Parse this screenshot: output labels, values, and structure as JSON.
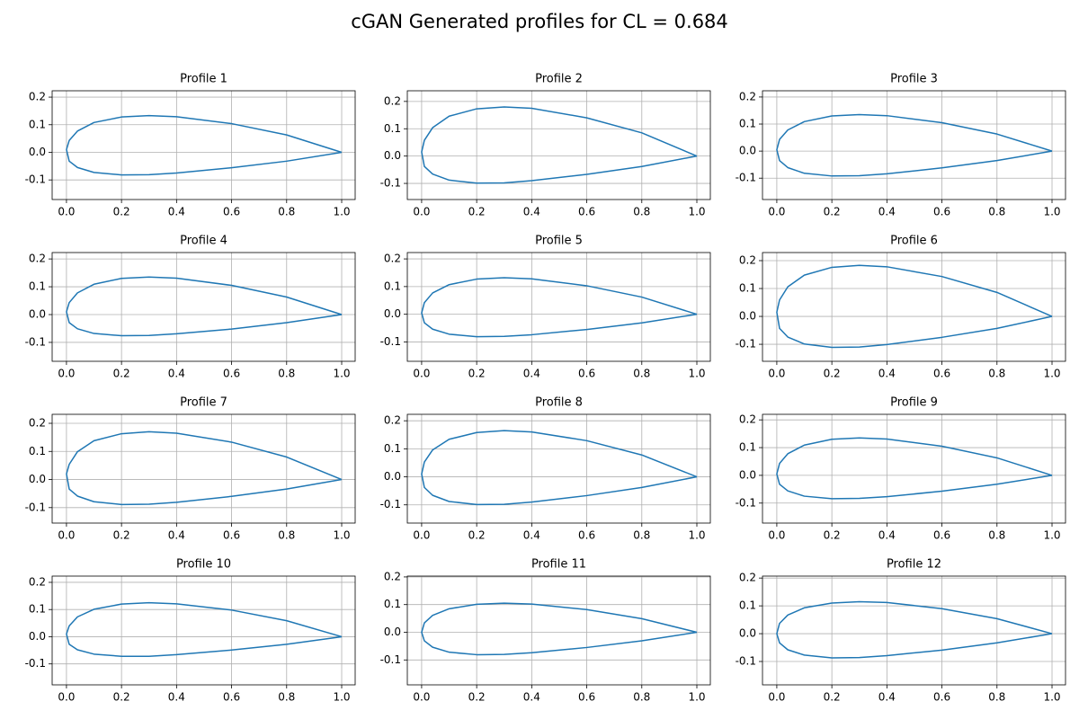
{
  "title": "cGAN Generated profiles for CL = 0.684",
  "chart_data": [
    {
      "type": "line",
      "title": "Profile 1",
      "color": "#1f77b4",
      "grid": true,
      "xlim": [
        -0.052,
        1.049
      ],
      "ylim": [
        -0.171,
        0.223
      ],
      "xticks": [
        {
          "value": 0,
          "label": "0.0"
        },
        0.2,
        0.4,
        0.6,
        0.8,
        {
          "value": 1,
          "label": "1.0"
        }
      ],
      "yticks": [
        -0.1,
        {
          "value": 0,
          "label": "0.0"
        },
        0.1,
        0.2
      ],
      "x": [
        1,
        0.8,
        0.6,
        0.4,
        0.3,
        0.2,
        0.1,
        0.04,
        0.01,
        0,
        0.01,
        0.04,
        0.1,
        0.2,
        0.3,
        0.4,
        0.6,
        0.8,
        1
      ],
      "values": [
        0,
        0.063,
        0.104,
        0.129,
        0.133,
        0.128,
        0.108,
        0.077,
        0.043,
        0.01,
        -0.032,
        -0.055,
        -0.073,
        -0.082,
        -0.081,
        -0.075,
        -0.056,
        -0.032,
        0
      ]
    },
    {
      "type": "line",
      "title": "Profile 2",
      "color": "#1f77b4",
      "grid": true,
      "xlim": [
        -0.052,
        1.049
      ],
      "ylim": [
        -0.159,
        0.239
      ],
      "xticks": [
        {
          "value": 0,
          "label": "0.0"
        },
        0.2,
        0.4,
        0.6,
        0.8,
        {
          "value": 1,
          "label": "1.0"
        }
      ],
      "yticks": [
        -0.1,
        {
          "value": 0,
          "label": "0.0"
        },
        0.1,
        0.2
      ],
      "x": [
        1,
        0.8,
        0.6,
        0.4,
        0.3,
        0.2,
        0.1,
        0.04,
        0.01,
        0,
        0.01,
        0.04,
        0.1,
        0.2,
        0.3,
        0.4,
        0.6,
        0.8,
        1
      ],
      "values": [
        0,
        0.085,
        0.14,
        0.175,
        0.18,
        0.173,
        0.146,
        0.104,
        0.058,
        0.015,
        -0.038,
        -0.066,
        -0.088,
        -0.099,
        -0.098,
        -0.09,
        -0.067,
        -0.038,
        0
      ]
    },
    {
      "type": "line",
      "title": "Profile 3",
      "color": "#1f77b4",
      "grid": true,
      "xlim": [
        -0.052,
        1.049
      ],
      "ylim": [
        -0.179,
        0.223
      ],
      "xticks": [
        {
          "value": 0,
          "label": "0.0"
        },
        0.2,
        0.4,
        0.6,
        0.8,
        {
          "value": 1,
          "label": "1.0"
        }
      ],
      "yticks": [
        -0.1,
        {
          "value": 0,
          "label": "0.0"
        },
        0.1,
        0.2
      ],
      "x": [
        1,
        0.8,
        0.6,
        0.4,
        0.3,
        0.2,
        0.1,
        0.04,
        0.01,
        0,
        0.01,
        0.04,
        0.1,
        0.2,
        0.3,
        0.4,
        0.6,
        0.8,
        1
      ],
      "values": [
        0,
        0.063,
        0.105,
        0.131,
        0.135,
        0.13,
        0.109,
        0.078,
        0.043,
        0.005,
        -0.035,
        -0.061,
        -0.082,
        -0.092,
        -0.091,
        -0.084,
        -0.062,
        -0.035,
        0
      ]
    },
    {
      "type": "line",
      "title": "Profile 4",
      "color": "#1f77b4",
      "grid": true,
      "xlim": [
        -0.052,
        1.049
      ],
      "ylim": [
        -0.168,
        0.223
      ],
      "xticks": [
        {
          "value": 0,
          "label": "0.0"
        },
        0.2,
        0.4,
        0.6,
        0.8,
        {
          "value": 1,
          "label": "1.0"
        }
      ],
      "yticks": [
        -0.1,
        {
          "value": 0,
          "label": "0.0"
        },
        0.1,
        0.2
      ],
      "x": [
        1,
        0.8,
        0.6,
        0.4,
        0.3,
        0.2,
        0.1,
        0.04,
        0.01,
        0,
        0.01,
        0.04,
        0.1,
        0.2,
        0.3,
        0.4,
        0.6,
        0.8,
        1
      ],
      "values": [
        0,
        0.063,
        0.105,
        0.131,
        0.135,
        0.13,
        0.109,
        0.078,
        0.043,
        0.01,
        -0.029,
        -0.051,
        -0.068,
        -0.076,
        -0.075,
        -0.069,
        -0.052,
        -0.029,
        0
      ]
    },
    {
      "type": "line",
      "title": "Profile 5",
      "color": "#1f77b4",
      "grid": true,
      "xlim": [
        -0.052,
        1.049
      ],
      "ylim": [
        -0.17,
        0.223
      ],
      "xticks": [
        {
          "value": 0,
          "label": "0.0"
        },
        0.2,
        0.4,
        0.6,
        0.8,
        {
          "value": 1,
          "label": "1.0"
        }
      ],
      "yticks": [
        -0.1,
        {
          "value": 0,
          "label": "0.0"
        },
        0.1,
        0.2
      ],
      "x": [
        1,
        0.8,
        0.6,
        0.4,
        0.3,
        0.2,
        0.1,
        0.04,
        0.01,
        0,
        0.01,
        0.04,
        0.1,
        0.2,
        0.3,
        0.4,
        0.6,
        0.8,
        1
      ],
      "values": [
        0,
        0.062,
        0.103,
        0.128,
        0.132,
        0.127,
        0.107,
        0.077,
        0.042,
        0.005,
        -0.031,
        -0.054,
        -0.072,
        -0.081,
        -0.08,
        -0.074,
        -0.055,
        -0.031,
        0
      ]
    },
    {
      "type": "line",
      "title": "Profile 6",
      "color": "#1f77b4",
      "grid": true,
      "xlim": [
        -0.052,
        1.049
      ],
      "ylim": [
        -0.161,
        0.229
      ],
      "xticks": [
        {
          "value": 0,
          "label": "0.0"
        },
        0.2,
        0.4,
        0.6,
        0.8,
        {
          "value": 1,
          "label": "1.0"
        }
      ],
      "yticks": [
        -0.1,
        {
          "value": 0,
          "label": "0.0"
        },
        0.1,
        0.2
      ],
      "x": [
        1,
        0.8,
        0.6,
        0.4,
        0.3,
        0.2,
        0.1,
        0.04,
        0.01,
        0,
        0.01,
        0.04,
        0.1,
        0.2,
        0.3,
        0.4,
        0.6,
        0.8,
        1
      ],
      "values": [
        0,
        0.086,
        0.143,
        0.178,
        0.183,
        0.176,
        0.148,
        0.106,
        0.059,
        0.015,
        -0.043,
        -0.074,
        -0.099,
        -0.111,
        -0.11,
        -0.101,
        -0.075,
        -0.043,
        0
      ]
    },
    {
      "type": "line",
      "title": "Profile 7",
      "color": "#1f77b4",
      "grid": true,
      "xlim": [
        -0.052,
        1.049
      ],
      "ylim": [
        -0.155,
        0.232
      ],
      "xticks": [
        {
          "value": 0,
          "label": "0.0"
        },
        0.2,
        0.4,
        0.6,
        0.8,
        {
          "value": 1,
          "label": "1.0"
        }
      ],
      "yticks": [
        -0.1,
        {
          "value": 0,
          "label": "0.0"
        },
        0.1,
        0.2
      ],
      "x": [
        1,
        0.8,
        0.6,
        0.4,
        0.3,
        0.2,
        0.1,
        0.04,
        0.01,
        0,
        0.01,
        0.04,
        0.1,
        0.2,
        0.3,
        0.4,
        0.6,
        0.8,
        1
      ],
      "values": [
        0,
        0.08,
        0.133,
        0.165,
        0.17,
        0.163,
        0.138,
        0.099,
        0.054,
        0.02,
        -0.034,
        -0.059,
        -0.079,
        -0.089,
        -0.088,
        -0.081,
        -0.06,
        -0.034,
        0
      ]
    },
    {
      "type": "line",
      "title": "Profile 8",
      "color": "#1f77b4",
      "grid": true,
      "xlim": [
        -0.052,
        1.049
      ],
      "ylim": [
        -0.165,
        0.223
      ],
      "xticks": [
        {
          "value": 0,
          "label": "0.0"
        },
        0.2,
        0.4,
        0.6,
        0.8,
        {
          "value": 1,
          "label": "1.0"
        }
      ],
      "yticks": [
        -0.1,
        {
          "value": 0,
          "label": "0.0"
        },
        0.1,
        0.2
      ],
      "x": [
        1,
        0.8,
        0.6,
        0.4,
        0.3,
        0.2,
        0.1,
        0.04,
        0.01,
        0,
        0.01,
        0.04,
        0.1,
        0.2,
        0.3,
        0.4,
        0.6,
        0.8,
        1
      ],
      "values": [
        0,
        0.078,
        0.129,
        0.16,
        0.165,
        0.158,
        0.134,
        0.096,
        0.053,
        0.01,
        -0.038,
        -0.066,
        -0.088,
        -0.099,
        -0.098,
        -0.09,
        -0.067,
        -0.038,
        0
      ]
    },
    {
      "type": "line",
      "title": "Profile 9",
      "color": "#1f77b4",
      "grid": true,
      "xlim": [
        -0.052,
        1.049
      ],
      "ylim": [
        -0.172,
        0.22
      ],
      "xticks": [
        {
          "value": 0,
          "label": "0.0"
        },
        0.2,
        0.4,
        0.6,
        0.8,
        {
          "value": 1,
          "label": "1.0"
        }
      ],
      "yticks": [
        -0.1,
        {
          "value": 0,
          "label": "0.0"
        },
        0.1,
        0.2
      ],
      "x": [
        1,
        0.8,
        0.6,
        0.4,
        0.3,
        0.2,
        0.1,
        0.04,
        0.01,
        0,
        0.01,
        0.04,
        0.1,
        0.2,
        0.3,
        0.4,
        0.6,
        0.8,
        1
      ],
      "values": [
        0,
        0.063,
        0.105,
        0.131,
        0.135,
        0.13,
        0.109,
        0.078,
        0.043,
        0.005,
        -0.032,
        -0.056,
        -0.075,
        -0.084,
        -0.083,
        -0.077,
        -0.057,
        -0.032,
        0
      ]
    },
    {
      "type": "line",
      "title": "Profile 10",
      "color": "#1f77b4",
      "grid": true,
      "xlim": [
        -0.052,
        1.049
      ],
      "ylim": [
        -0.177,
        0.223
      ],
      "xticks": [
        {
          "value": 0,
          "label": "0.0"
        },
        0.2,
        0.4,
        0.6,
        0.8,
        {
          "value": 1,
          "label": "1.0"
        }
      ],
      "yticks": [
        -0.1,
        {
          "value": 0,
          "label": "0.0"
        },
        0.1,
        0.2
      ],
      "x": [
        1,
        0.8,
        0.6,
        0.4,
        0.3,
        0.2,
        0.1,
        0.04,
        0.01,
        0,
        0.01,
        0.04,
        0.1,
        0.2,
        0.3,
        0.4,
        0.6,
        0.8,
        1
      ],
      "values": [
        0,
        0.059,
        0.098,
        0.121,
        0.125,
        0.12,
        0.101,
        0.073,
        0.04,
        0.01,
        -0.028,
        -0.048,
        -0.064,
        -0.072,
        -0.072,
        -0.066,
        -0.049,
        -0.028,
        0
      ]
    },
    {
      "type": "line",
      "title": "Profile 11",
      "color": "#1f77b4",
      "grid": true,
      "xlim": [
        -0.052,
        1.049
      ],
      "ylim": [
        -0.19,
        0.203
      ],
      "xticks": [
        {
          "value": 0,
          "label": "0.0"
        },
        0.2,
        0.4,
        0.6,
        0.8,
        {
          "value": 1,
          "label": "1.0"
        }
      ],
      "yticks": [
        -0.1,
        {
          "value": 0,
          "label": "0.0"
        },
        0.1,
        0.2
      ],
      "x": [
        1,
        0.8,
        0.6,
        0.4,
        0.3,
        0.2,
        0.1,
        0.04,
        0.01,
        0,
        0.01,
        0.04,
        0.1,
        0.2,
        0.3,
        0.4,
        0.6,
        0.8,
        1
      ],
      "values": [
        0,
        0.049,
        0.082,
        0.102,
        0.105,
        0.101,
        0.085,
        0.061,
        0.034,
        0,
        -0.031,
        -0.054,
        -0.072,
        -0.081,
        -0.08,
        -0.074,
        -0.055,
        -0.031,
        0
      ]
    },
    {
      "type": "line",
      "title": "Profile 12",
      "color": "#1f77b4",
      "grid": true,
      "xlim": [
        -0.052,
        1.049
      ],
      "ylim": [
        -0.184,
        0.207
      ],
      "xticks": [
        {
          "value": 0,
          "label": "0.0"
        },
        0.2,
        0.4,
        0.6,
        0.8,
        {
          "value": 1,
          "label": "1.0"
        }
      ],
      "yticks": [
        -0.1,
        {
          "value": 0,
          "label": "0.0"
        },
        0.1,
        0.2
      ],
      "x": [
        1,
        0.8,
        0.6,
        0.4,
        0.3,
        0.2,
        0.1,
        0.04,
        0.01,
        0,
        0.01,
        0.04,
        0.1,
        0.2,
        0.3,
        0.4,
        0.6,
        0.8,
        1
      ],
      "values": [
        0,
        0.054,
        0.09,
        0.112,
        0.115,
        0.11,
        0.093,
        0.067,
        0.037,
        0,
        -0.033,
        -0.058,
        -0.077,
        -0.087,
        -0.086,
        -0.079,
        -0.059,
        -0.033,
        0
      ]
    }
  ]
}
